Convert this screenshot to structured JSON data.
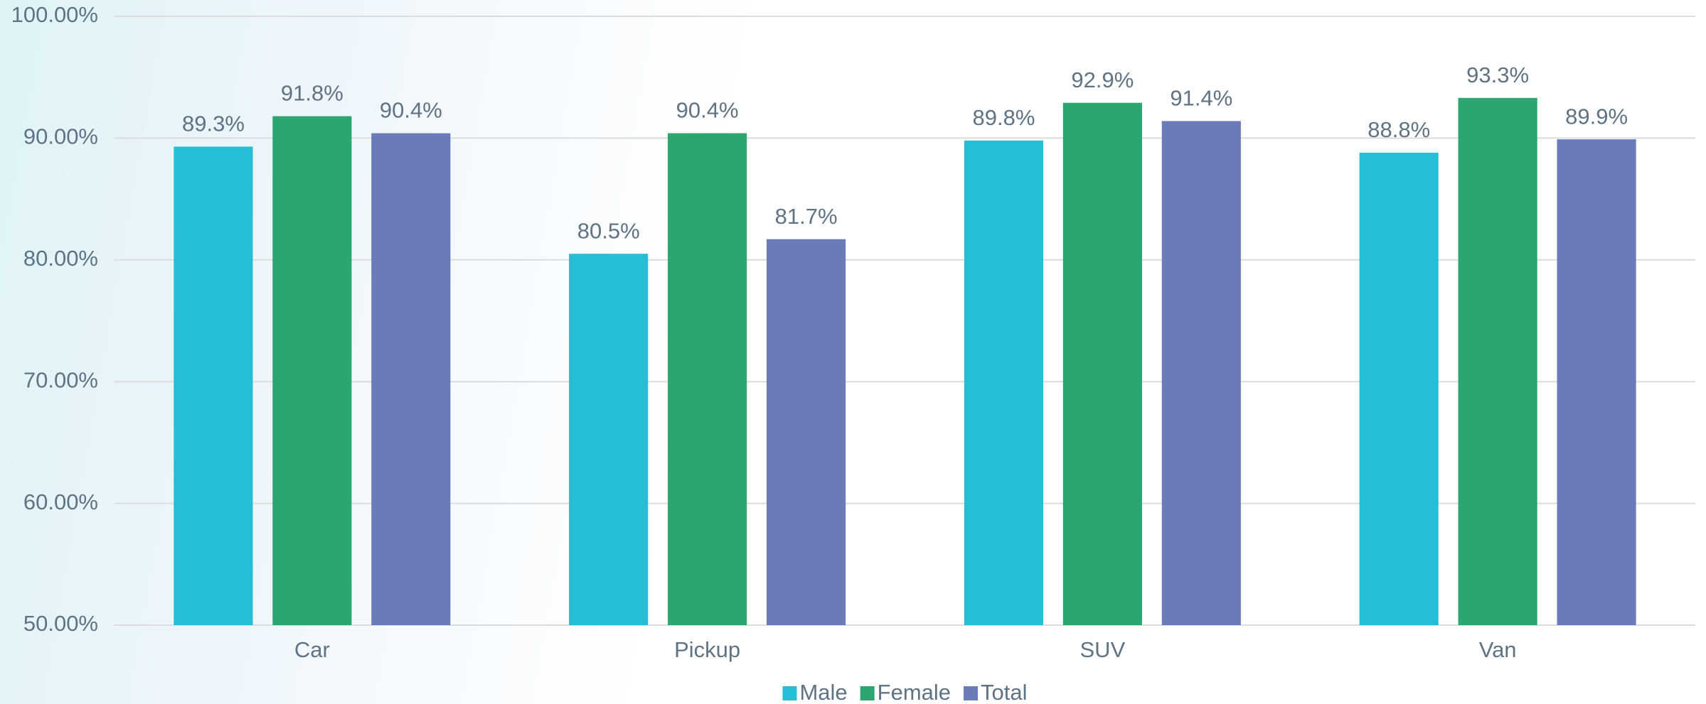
{
  "chart_data": {
    "type": "bar",
    "categories": [
      "Car",
      "Pickup",
      "SUV",
      "Van"
    ],
    "series": [
      {
        "name": "Male",
        "color": "#26bed6",
        "values": [
          89.3,
          80.5,
          89.8,
          88.8
        ],
        "value_labels": [
          "89.3%",
          "80.5%",
          "89.8%",
          "88.8%"
        ]
      },
      {
        "name": "Female",
        "color": "#2ba66e",
        "values": [
          91.8,
          90.4,
          92.9,
          93.3
        ],
        "value_labels": [
          "91.8%",
          "90.4%",
          "92.9%",
          "93.3%"
        ]
      },
      {
        "name": "Total",
        "color": "#6b7ab8",
        "values": [
          90.4,
          81.7,
          91.4,
          89.9
        ],
        "value_labels": [
          "90.4%",
          "81.7%",
          "91.4%",
          "89.9%"
        ]
      }
    ],
    "ylim": [
      50,
      100
    ],
    "yticks": [
      {
        "value": 50,
        "label": "50.00%"
      },
      {
        "value": 60,
        "label": "60.00%"
      },
      {
        "value": 70,
        "label": "70.00%"
      },
      {
        "value": 80,
        "label": "80.00%"
      },
      {
        "value": 90,
        "label": "90.00%"
      },
      {
        "value": 100,
        "label": "100.00%"
      }
    ],
    "grid": true,
    "legend": "bottom"
  }
}
